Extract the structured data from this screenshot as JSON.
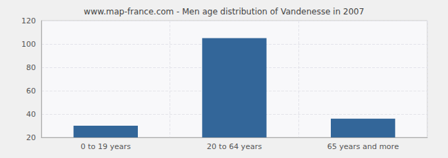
{
  "chart_data": {
    "type": "bar",
    "title": "www.map-france.com - Men age distribution of Vandenesse in 2007",
    "categories": [
      "0 to 19 years",
      "20 to 64 years",
      "65 years and more"
    ],
    "values": [
      30,
      105,
      36
    ],
    "color": "#336699",
    "ylim": [
      20,
      120
    ],
    "yticks": [
      20,
      40,
      60,
      80,
      100,
      120
    ],
    "grid": true
  }
}
